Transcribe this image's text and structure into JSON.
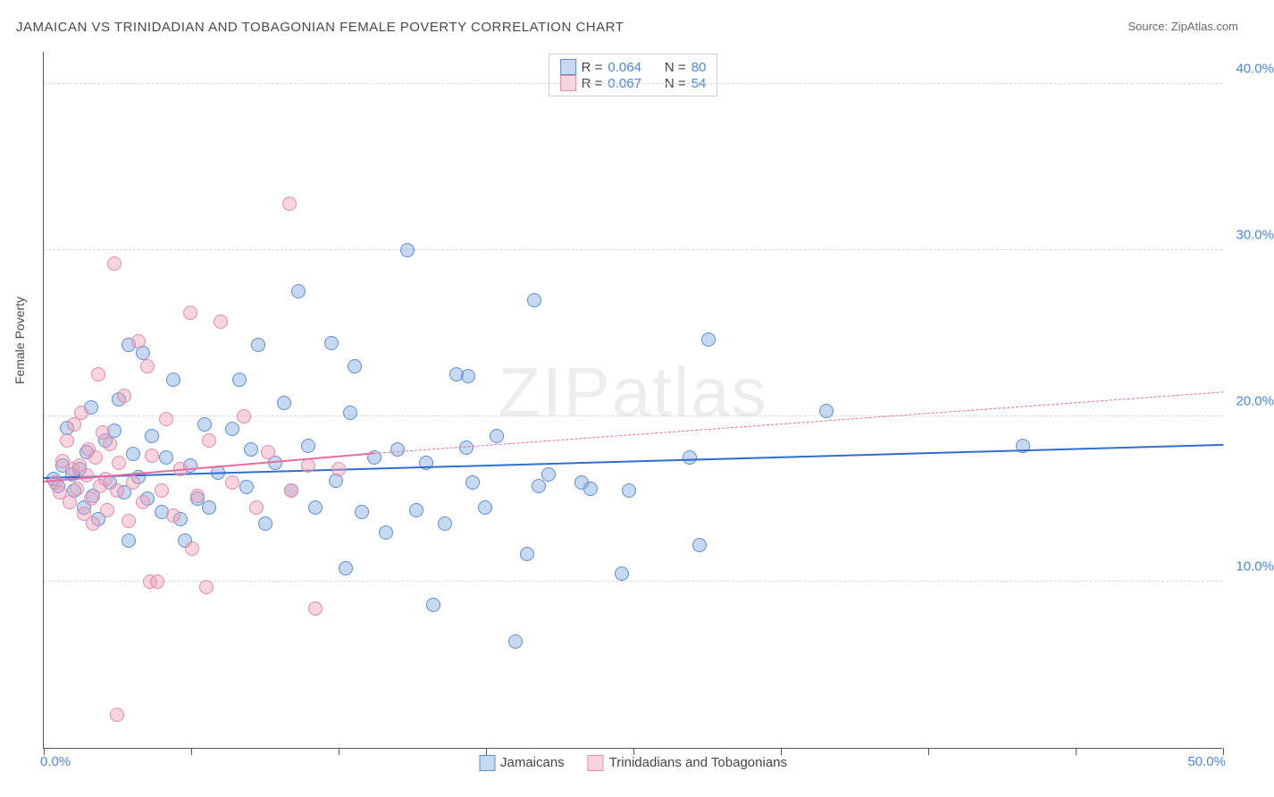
{
  "title": "JAMAICAN VS TRINIDADIAN AND TOBAGONIAN FEMALE POVERTY CORRELATION CHART",
  "source_label": "Source: ZipAtlas.com",
  "ylabel": "Female Poverty",
  "watermark": "ZIPatlas",
  "chart": {
    "type": "scatter",
    "xlim": [
      0,
      50
    ],
    "ylim": [
      0,
      42
    ],
    "x_tick_positions": [
      0,
      6.25,
      12.5,
      18.75,
      25,
      31.25,
      37.5,
      43.75,
      50
    ],
    "x_axis_label_start": "0.0%",
    "x_axis_label_end": "50.0%",
    "y_gridlines": [
      10,
      20,
      30,
      40
    ],
    "y_tick_labels": [
      "10.0%",
      "20.0%",
      "30.0%",
      "40.0%"
    ],
    "background_color": "#ffffff",
    "grid_color": "#d8d8d8",
    "axis_color": "#555555",
    "tick_label_color": "#4a86e8",
    "point_radius": 8,
    "point_border_width": 1.5,
    "series": [
      {
        "name": "Jamaicans",
        "fill_color": "rgba(130,170,225,0.45)",
        "border_color": "#5b8fd6",
        "r_value": "0.064",
        "n_value": "80",
        "trend_color": "#2f6fd0",
        "trend_start": [
          0,
          16.2
        ],
        "trend_end": [
          50,
          18.2
        ],
        "points": [
          [
            0.4,
            16.2
          ],
          [
            0.6,
            15.8
          ],
          [
            0.8,
            17.0
          ],
          [
            1.0,
            19.3
          ],
          [
            1.2,
            16.5
          ],
          [
            1.3,
            15.5
          ],
          [
            1.5,
            16.8
          ],
          [
            1.7,
            14.5
          ],
          [
            1.8,
            17.8
          ],
          [
            2.0,
            20.5
          ],
          [
            2.1,
            15.2
          ],
          [
            2.3,
            13.8
          ],
          [
            3.6,
            24.3
          ],
          [
            2.6,
            18.5
          ],
          [
            2.8,
            16.0
          ],
          [
            3.0,
            19.1
          ],
          [
            3.2,
            21.0
          ],
          [
            3.4,
            15.4
          ],
          [
            3.6,
            12.5
          ],
          [
            3.8,
            17.7
          ],
          [
            4.0,
            16.3
          ],
          [
            4.2,
            23.8
          ],
          [
            4.4,
            15.0
          ],
          [
            4.6,
            18.8
          ],
          [
            5.0,
            14.2
          ],
          [
            5.2,
            17.5
          ],
          [
            5.5,
            22.2
          ],
          [
            5.8,
            13.8
          ],
          [
            6.2,
            17.0
          ],
          [
            6.5,
            15.0
          ],
          [
            6.8,
            19.5
          ],
          [
            7.0,
            14.5
          ],
          [
            7.4,
            16.6
          ],
          [
            8.0,
            19.2
          ],
          [
            8.3,
            22.2
          ],
          [
            8.6,
            15.7
          ],
          [
            8.8,
            18.0
          ],
          [
            9.1,
            24.3
          ],
          [
            9.4,
            13.5
          ],
          [
            9.8,
            17.2
          ],
          [
            10.2,
            20.8
          ],
          [
            10.5,
            15.5
          ],
          [
            10.8,
            27.5
          ],
          [
            11.2,
            18.2
          ],
          [
            11.5,
            14.5
          ],
          [
            12.2,
            24.4
          ],
          [
            12.4,
            16.1
          ],
          [
            12.8,
            10.8
          ],
          [
            13.2,
            23.0
          ],
          [
            13.5,
            14.2
          ],
          [
            14.0,
            17.5
          ],
          [
            14.5,
            13.0
          ],
          [
            15.0,
            18.0
          ],
          [
            15.4,
            30.0
          ],
          [
            15.8,
            14.3
          ],
          [
            16.2,
            17.2
          ],
          [
            16.5,
            8.6
          ],
          [
            17.0,
            13.5
          ],
          [
            17.5,
            22.5
          ],
          [
            18.0,
            22.4
          ],
          [
            18.2,
            16.0
          ],
          [
            18.7,
            14.5
          ],
          [
            19.2,
            18.8
          ],
          [
            17.9,
            18.1
          ],
          [
            20.0,
            6.4
          ],
          [
            20.5,
            11.7
          ],
          [
            20.8,
            27.0
          ],
          [
            21.0,
            15.8
          ],
          [
            21.4,
            16.5
          ],
          [
            22.8,
            16.0
          ],
          [
            23.2,
            15.6
          ],
          [
            24.5,
            10.5
          ],
          [
            24.8,
            15.5
          ],
          [
            27.4,
            17.5
          ],
          [
            27.8,
            12.2
          ],
          [
            28.2,
            24.6
          ],
          [
            33.2,
            20.3
          ],
          [
            41.5,
            18.2
          ],
          [
            13.0,
            20.2
          ],
          [
            6.0,
            12.5
          ]
        ]
      },
      {
        "name": "Trinidadians and Tobagonians",
        "fill_color": "rgba(240,160,185,0.45)",
        "border_color": "#e48aaa",
        "r_value": "0.067",
        "n_value": "54",
        "trend_color": "#e96aa0",
        "trend_start": [
          0,
          16.0
        ],
        "trend_end": [
          14,
          17.7
        ],
        "trend_dashed_start": [
          14,
          17.7
        ],
        "trend_dashed_end": [
          50,
          21.4
        ],
        "points": [
          [
            0.5,
            16.0
          ],
          [
            0.7,
            15.4
          ],
          [
            0.8,
            17.3
          ],
          [
            1.0,
            18.5
          ],
          [
            1.1,
            14.8
          ],
          [
            1.2,
            16.8
          ],
          [
            1.3,
            19.5
          ],
          [
            1.4,
            15.6
          ],
          [
            1.5,
            17.0
          ],
          [
            1.6,
            20.2
          ],
          [
            1.7,
            14.1
          ],
          [
            1.8,
            16.4
          ],
          [
            1.9,
            18.0
          ],
          [
            2.0,
            15.0
          ],
          [
            2.1,
            13.5
          ],
          [
            2.2,
            17.5
          ],
          [
            2.3,
            22.5
          ],
          [
            2.4,
            15.8
          ],
          [
            2.5,
            19.0
          ],
          [
            2.6,
            16.2
          ],
          [
            2.7,
            14.3
          ],
          [
            2.8,
            18.3
          ],
          [
            3.0,
            29.2
          ],
          [
            3.1,
            15.5
          ],
          [
            3.2,
            17.2
          ],
          [
            3.4,
            21.2
          ],
          [
            3.6,
            13.7
          ],
          [
            3.8,
            16.0
          ],
          [
            4.0,
            24.5
          ],
          [
            4.2,
            14.8
          ],
          [
            4.4,
            23.0
          ],
          [
            4.6,
            17.6
          ],
          [
            4.5,
            10.0
          ],
          [
            5.0,
            15.5
          ],
          [
            5.2,
            19.8
          ],
          [
            5.5,
            14.0
          ],
          [
            5.8,
            16.8
          ],
          [
            6.2,
            26.2
          ],
          [
            6.3,
            12.0
          ],
          [
            6.5,
            15.2
          ],
          [
            7.0,
            18.5
          ],
          [
            7.5,
            25.7
          ],
          [
            8.0,
            16.0
          ],
          [
            8.5,
            20.0
          ],
          [
            9.0,
            14.5
          ],
          [
            9.5,
            17.8
          ],
          [
            10.4,
            32.8
          ],
          [
            10.5,
            15.5
          ],
          [
            11.2,
            17.0
          ],
          [
            4.8,
            10.0
          ],
          [
            12.5,
            16.8
          ],
          [
            6.9,
            9.7
          ],
          [
            11.5,
            8.4
          ],
          [
            3.1,
            2.0
          ]
        ]
      }
    ]
  },
  "legend_top": {
    "r_label": "R =",
    "n_label": "N ="
  },
  "legend_bottom": {
    "items": [
      "Jamaicans",
      "Trinidadians and Tobagonians"
    ]
  }
}
